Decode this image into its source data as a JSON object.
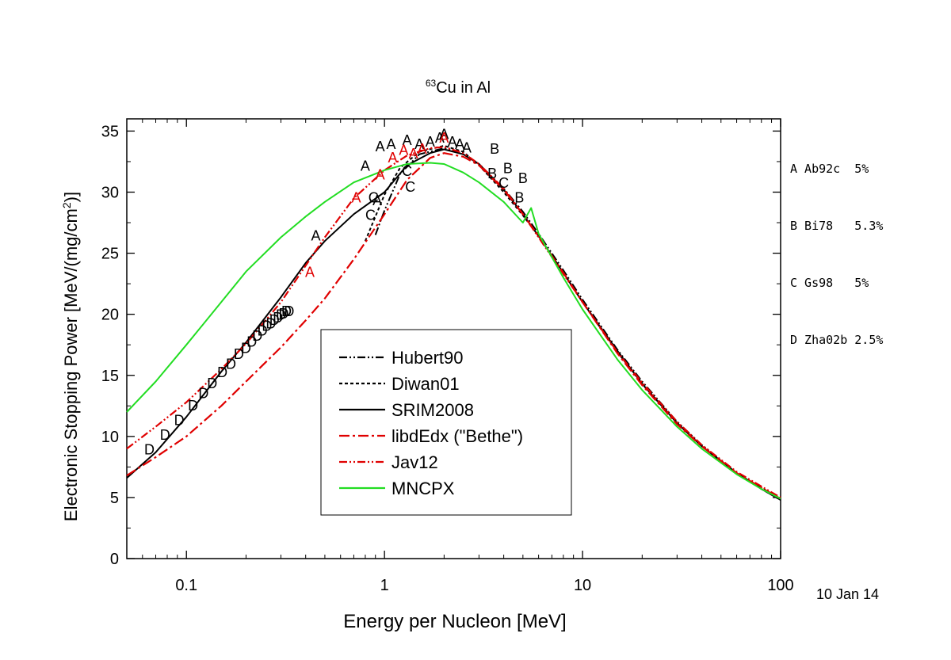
{
  "chart_data": {
    "type": "line",
    "title": {
      "superscript": "63",
      "text": "Cu in Al"
    },
    "xlabel": "Energy per Nucleon [MeV]",
    "ylabel": {
      "before": "Electronic Stopping Power [MeV/(mg/cm",
      "sup": "2",
      "after": ")]"
    },
    "xscale": "log",
    "xlim": [
      0.05,
      100
    ],
    "ylim": [
      0,
      36
    ],
    "x_ticks": [
      {
        "v": 0.1,
        "label": "0.1"
      },
      {
        "v": 1,
        "label": "1"
      },
      {
        "v": 10,
        "label": "10"
      },
      {
        "v": 100,
        "label": "100"
      }
    ],
    "y_ticks": [
      0,
      5,
      10,
      15,
      20,
      25,
      30,
      35
    ],
    "grid": false,
    "legend_position": "center-left",
    "series": [
      {
        "name": "Hubert90",
        "color": "#000000",
        "dash": "10,3,2,3,2,3",
        "x": [
          0.9,
          1.0,
          1.2,
          1.5,
          2.0,
          2.5,
          3,
          4,
          5,
          6,
          8,
          10,
          15,
          20,
          30,
          40,
          60,
          80,
          100
        ],
        "y": [
          26.5,
          28.5,
          31.5,
          33.1,
          33.6,
          33.1,
          32.3,
          30.3,
          28.4,
          26.6,
          23.6,
          21.2,
          17.1,
          14.5,
          11.2,
          9.3,
          7.0,
          5.8,
          4.9
        ]
      },
      {
        "name": "Diwan01",
        "color": "#000000",
        "dash": "4,3",
        "x": [
          0.8,
          0.9,
          1.0,
          1.2,
          1.5,
          2.0,
          2.5,
          3,
          4,
          5,
          6,
          8,
          10,
          15,
          20,
          30,
          40,
          60,
          80,
          100
        ],
        "y": [
          26.0,
          28.0,
          29.8,
          32.0,
          33.3,
          33.8,
          33.3,
          32.2,
          30.0,
          28.1,
          26.4,
          23.4,
          21.0,
          16.9,
          14.3,
          11.1,
          9.2,
          7.0,
          5.7,
          4.8
        ]
      },
      {
        "name": "SRIM2008",
        "color": "#000000",
        "dash": "",
        "x": [
          0.05,
          0.07,
          0.1,
          0.15,
          0.2,
          0.3,
          0.4,
          0.5,
          0.7,
          1.0,
          1.3,
          1.7,
          2.0,
          2.5,
          3,
          4,
          5,
          6,
          8,
          10,
          15,
          20,
          30,
          40,
          60,
          80,
          100
        ],
        "y": [
          6.6,
          8.7,
          11.6,
          15.3,
          17.7,
          21.4,
          24.2,
          26.0,
          28.2,
          30.0,
          32.2,
          33.2,
          33.5,
          33.1,
          32.3,
          30.2,
          28.2,
          26.4,
          23.4,
          21.0,
          17.0,
          14.3,
          11.1,
          9.2,
          7.0,
          5.7,
          4.8
        ]
      },
      {
        "name": "libdEdx (\"Bethe\")",
        "color": "#e00000",
        "dash": "13,4,3,4",
        "x": [
          0.05,
          0.07,
          0.1,
          0.15,
          0.2,
          0.3,
          0.4,
          0.5,
          0.7,
          1.0,
          1.3,
          1.7,
          2.0,
          2.5,
          3,
          4,
          5,
          6,
          8,
          10,
          15,
          20,
          30,
          40,
          60,
          80,
          100
        ],
        "y": [
          6.8,
          8.3,
          10.0,
          12.5,
          14.5,
          17.3,
          19.5,
          21.3,
          24.5,
          28.2,
          31.0,
          32.8,
          33.2,
          32.9,
          32.2,
          30.2,
          28.2,
          26.4,
          23.4,
          21.0,
          16.8,
          14.2,
          11.0,
          9.2,
          7.0,
          5.8,
          4.9
        ]
      },
      {
        "name": "Jav12",
        "color": "#e00000",
        "dash": "10,3,2,3,2,3",
        "x": [
          0.05,
          0.07,
          0.1,
          0.15,
          0.2,
          0.3,
          0.5,
          0.7,
          1.0,
          1.3,
          1.7,
          2.0,
          2.5,
          3,
          4,
          5,
          6,
          8,
          10,
          15,
          20,
          30,
          40,
          60,
          80,
          100
        ],
        "y": [
          9.0,
          10.8,
          12.8,
          15.5,
          17.6,
          21.0,
          26.3,
          29.5,
          31.8,
          33.0,
          33.6,
          33.7,
          33.2,
          32.3,
          30.3,
          28.2,
          26.3,
          23.3,
          21.0,
          16.9,
          14.4,
          11.2,
          9.3,
          7.1,
          5.9,
          5.0
        ]
      },
      {
        "name": "MNCPX",
        "color": "#22dd22",
        "dash": "",
        "x": [
          0.05,
          0.07,
          0.1,
          0.15,
          0.2,
          0.3,
          0.4,
          0.5,
          0.7,
          1.0,
          1.3,
          1.7,
          2.0,
          2.5,
          3,
          4,
          5,
          5.5,
          6,
          8,
          10,
          15,
          20,
          30,
          40,
          60,
          80,
          100
        ],
        "y": [
          12.0,
          14.5,
          17.5,
          21.0,
          23.5,
          26.3,
          28.0,
          29.2,
          30.8,
          31.8,
          32.3,
          32.4,
          32.3,
          31.6,
          30.8,
          29.2,
          27.5,
          28.7,
          26.6,
          23.0,
          20.4,
          16.3,
          13.8,
          10.8,
          9.0,
          6.9,
          5.7,
          4.9
        ]
      }
    ],
    "markers": [
      {
        "label": "A",
        "color": "#000000",
        "x": [
          0.45,
          0.8,
          0.95,
          1.08,
          1.3,
          1.5,
          1.7,
          1.9,
          2.0,
          2.2,
          2.4,
          2.6
        ],
        "y": [
          26.5,
          32.2,
          33.8,
          34.0,
          34.3,
          34.0,
          34.2,
          34.5,
          34.8,
          34.2,
          34.0,
          33.7
        ]
      },
      {
        "label": "A",
        "color": "#e00000",
        "x": [
          0.42,
          0.72,
          0.95,
          1.1,
          1.25,
          1.4,
          1.55,
          2.0
        ],
        "y": [
          23.5,
          29.6,
          31.5,
          32.9,
          33.5,
          33.2,
          33.6,
          34.5
        ]
      },
      {
        "label": "A",
        "color": "#000000",
        "x": [
          0.92
        ],
        "y": [
          29.4
        ]
      },
      {
        "label": "B",
        "color": "#000000",
        "x": [
          3.6,
          4.2,
          4.8,
          5.0
        ],
        "y": [
          33.6,
          32.0,
          29.6,
          31.2
        ]
      },
      {
        "label": "B",
        "color": "#000000",
        "x": [
          3.5
        ],
        "y": [
          31.6
        ]
      },
      {
        "label": "C",
        "color": "#000000",
        "x": [
          0.88,
          1.35,
          4.0
        ],
        "y": [
          29.6,
          30.5,
          30.8
        ]
      },
      {
        "label": "C",
        "color": "#000000",
        "x": [
          0.85,
          1.3
        ],
        "y": [
          28.2,
          31.8
        ]
      },
      {
        "label": "D",
        "color": "#000000",
        "x": [
          0.065,
          0.078,
          0.092,
          0.108,
          0.122,
          0.135,
          0.152,
          0.168,
          0.184,
          0.2,
          0.214,
          0.228,
          0.242,
          0.255,
          0.267,
          0.278,
          0.29,
          0.3,
          0.31,
          0.32,
          0.33
        ],
        "y": [
          9.0,
          10.2,
          11.4,
          12.6,
          13.6,
          14.4,
          15.3,
          16.0,
          16.8,
          17.3,
          17.8,
          18.3,
          18.7,
          19.1,
          19.3,
          19.6,
          19.8,
          20.0,
          20.1,
          20.3,
          20.3
        ]
      }
    ]
  },
  "references": [
    {
      "text": "A Ab92c  5%"
    },
    {
      "text": "B Bi78   5.3%"
    },
    {
      "text": "C Gs98   5%"
    },
    {
      "text": "D Zha02b 2.5%"
    }
  ],
  "date_stamp": "10 Jan 14"
}
